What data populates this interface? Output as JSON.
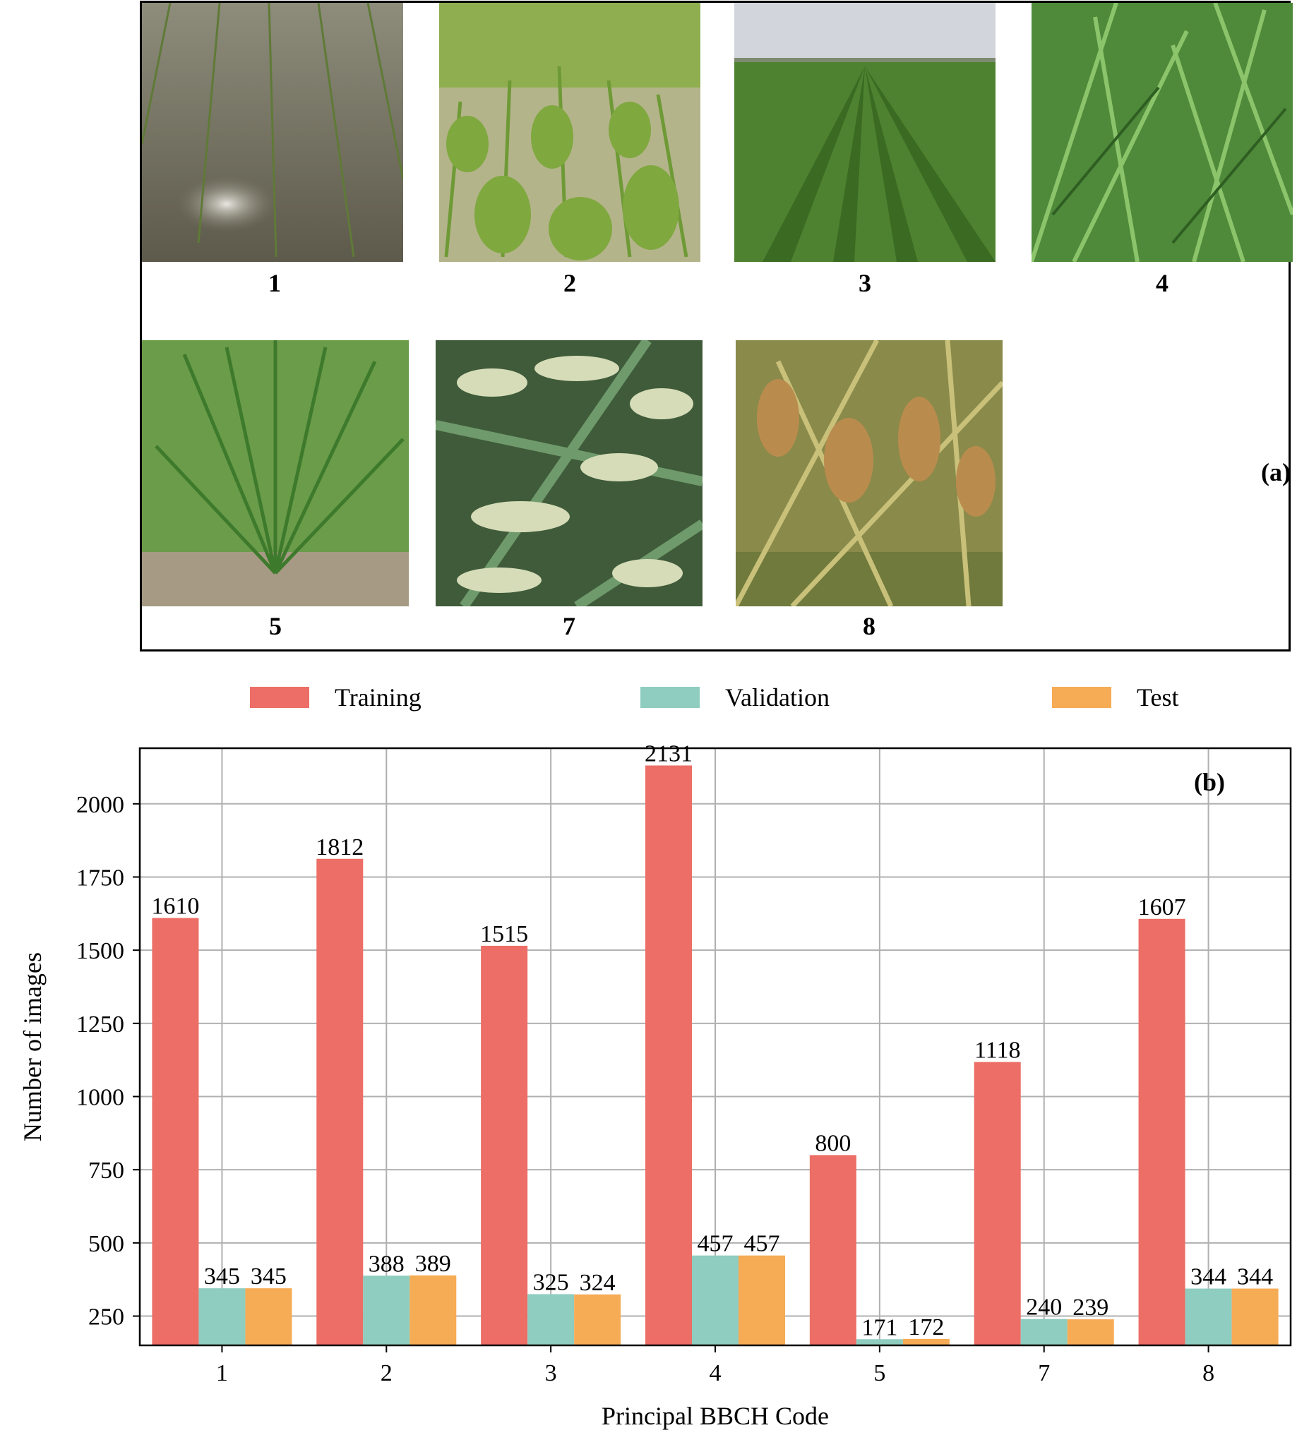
{
  "panel_a": {
    "tag": "(a)",
    "photos": [
      {
        "label": "1",
        "scene": "flooded-paddy-seedlings"
      },
      {
        "label": "2",
        "scene": "young-tillering-rice"
      },
      {
        "label": "3",
        "scene": "rice-field-rows-with-sky"
      },
      {
        "label": "4",
        "scene": "dense-green-leaves"
      },
      {
        "label": "5",
        "scene": "booting-rice-plant"
      },
      {
        "label": "7",
        "scene": "milky-grain-panicles"
      },
      {
        "label": "8",
        "scene": "ripening-golden-panicles"
      }
    ]
  },
  "legend": [
    {
      "label": "Training",
      "color": "#ec6e66"
    },
    {
      "label": "Validation",
      "color": "#8ecdbf"
    },
    {
      "label": "Test",
      "color": "#f6ab55"
    }
  ],
  "chart_data": {
    "type": "bar",
    "panel_tag": "(b)",
    "xlabel": "Principal BBCH Code",
    "ylabel": "Number of images",
    "categories": [
      "1",
      "2",
      "3",
      "4",
      "5",
      "7",
      "8"
    ],
    "series": [
      {
        "name": "Training",
        "color": "#ec6e66",
        "values": [
          1610,
          1812,
          1515,
          2131,
          800,
          1118,
          1607
        ]
      },
      {
        "name": "Validation",
        "color": "#8ecdbf",
        "values": [
          345,
          388,
          325,
          457,
          171,
          240,
          344
        ]
      },
      {
        "name": "Test",
        "color": "#f6ab55",
        "values": [
          345,
          389,
          324,
          457,
          172,
          239,
          344
        ]
      }
    ],
    "yticks": [
      250,
      500,
      750,
      1000,
      1250,
      1500,
      1750,
      2000
    ],
    "ylim": [
      150,
      2190
    ],
    "grid": true,
    "legend_position": "top"
  }
}
